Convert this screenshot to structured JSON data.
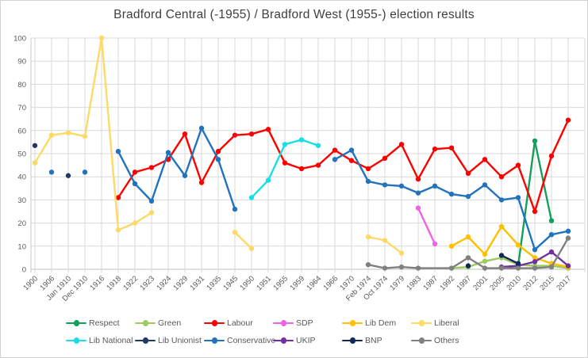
{
  "chart_data": {
    "type": "line",
    "title": "Bradford Central (-1955) / Bradford West (1955-) election results",
    "xlabel": "",
    "ylabel": "",
    "ylim": [
      0,
      100
    ],
    "ytick_step": 10,
    "yticks": [
      0,
      10,
      20,
      30,
      40,
      50,
      60,
      70,
      80,
      90,
      100
    ],
    "grid": true,
    "legend_position": "bottom",
    "marker": "circle",
    "categories": [
      "1900",
      "1906",
      "Jan 1910",
      "Dec 1910",
      "1916",
      "1918",
      "1922",
      "1923",
      "1924",
      "1929",
      "1931",
      "1935",
      "1945",
      "1950",
      "1951",
      "1955",
      "1959",
      "1964",
      "1966",
      "1970",
      "Feb 1974",
      "Oct 1974",
      "1979",
      "1983",
      "1987",
      "1992",
      "1997",
      "2001",
      "2005",
      "2010",
      "2012",
      "2015",
      "2017"
    ],
    "series": [
      {
        "name": "Respect",
        "color": "#14a05a",
        "connect_gaps": false,
        "values": [
          null,
          null,
          null,
          null,
          null,
          null,
          null,
          null,
          null,
          null,
          null,
          null,
          null,
          null,
          null,
          null,
          null,
          null,
          null,
          null,
          null,
          null,
          null,
          null,
          null,
          null,
          null,
          null,
          null,
          1.5,
          55.5,
          21,
          null
        ]
      },
      {
        "name": "Green",
        "color": "#9dc962",
        "connect_gaps": false,
        "values": [
          null,
          null,
          null,
          null,
          null,
          null,
          null,
          null,
          null,
          null,
          null,
          null,
          null,
          null,
          null,
          null,
          null,
          null,
          null,
          null,
          null,
          null,
          null,
          null,
          null,
          0.5,
          1,
          3.5,
          5,
          2,
          1.5,
          1.5,
          0.5
        ]
      },
      {
        "name": "Labour",
        "color": "#fe0000",
        "connect_gaps": false,
        "values": [
          null,
          null,
          null,
          null,
          null,
          31,
          42,
          44,
          47.5,
          58.5,
          37.5,
          51,
          58,
          58.5,
          60.5,
          46,
          43.5,
          45,
          51.5,
          47,
          43.5,
          48,
          54,
          39,
          52,
          52.5,
          41.5,
          47.5,
          40,
          45,
          25,
          49,
          64.5
        ]
      },
      {
        "name": "SDP",
        "color": "#ee64e4",
        "connect_gaps": false,
        "values": [
          null,
          null,
          null,
          null,
          null,
          null,
          null,
          null,
          null,
          null,
          null,
          null,
          null,
          null,
          null,
          null,
          null,
          null,
          null,
          null,
          null,
          null,
          null,
          26.5,
          11,
          null,
          null,
          null,
          null,
          null,
          null,
          null,
          null
        ]
      },
      {
        "name": "Lib Dem",
        "color": "#ffc000",
        "connect_gaps": false,
        "values": [
          null,
          null,
          null,
          null,
          null,
          null,
          null,
          null,
          null,
          null,
          null,
          null,
          null,
          null,
          null,
          null,
          null,
          null,
          null,
          null,
          null,
          null,
          null,
          null,
          null,
          10,
          14,
          6.5,
          18.5,
          10.5,
          5,
          2.5,
          1
        ]
      },
      {
        "name": "Liberal",
        "color": "#ffd966",
        "connect_gaps": false,
        "values": [
          46,
          58,
          59,
          57.5,
          100,
          17,
          20,
          24.5,
          null,
          null,
          null,
          null,
          16,
          9,
          null,
          null,
          null,
          null,
          null,
          null,
          14,
          12.5,
          7,
          null,
          null,
          null,
          null,
          null,
          null,
          null,
          null,
          null,
          null
        ]
      },
      {
        "name": "Lib National",
        "color": "#16e0e6",
        "connect_gaps": false,
        "values": [
          null,
          null,
          null,
          null,
          null,
          null,
          null,
          null,
          null,
          null,
          null,
          null,
          null,
          31,
          38.5,
          54,
          56,
          53.5,
          null,
          null,
          null,
          null,
          null,
          null,
          null,
          null,
          null,
          null,
          null,
          null,
          null,
          null,
          null
        ]
      },
      {
        "name": "Lib Unionist",
        "color": "#23395f",
        "connect_gaps": false,
        "values": [
          53.5,
          null,
          40.5,
          null,
          null,
          null,
          null,
          null,
          null,
          null,
          null,
          null,
          null,
          null,
          null,
          null,
          null,
          null,
          null,
          null,
          null,
          null,
          null,
          null,
          null,
          null,
          null,
          null,
          null,
          null,
          null,
          null,
          null
        ]
      },
      {
        "name": "Conservative",
        "color": "#2173bd",
        "connect_gaps": false,
        "values": [
          null,
          42,
          null,
          42,
          null,
          51,
          37,
          29.5,
          50.5,
          40.5,
          61,
          47.5,
          26,
          null,
          null,
          null,
          null,
          null,
          47.5,
          51.5,
          38,
          36.5,
          36,
          33,
          36,
          32.5,
          31.5,
          36.5,
          30,
          31,
          8.5,
          15,
          16.5
        ]
      },
      {
        "name": "UKIP",
        "color": "#7030a0",
        "connect_gaps": false,
        "values": [
          null,
          null,
          null,
          null,
          null,
          null,
          null,
          null,
          null,
          null,
          null,
          null,
          null,
          null,
          null,
          null,
          null,
          null,
          null,
          null,
          null,
          null,
          null,
          null,
          null,
          null,
          null,
          null,
          1,
          1.5,
          3.3,
          7.5,
          1.5
        ]
      },
      {
        "name": "BNP",
        "color": "#12275a",
        "connect_gaps": false,
        "values": [
          null,
          null,
          null,
          null,
          null,
          null,
          null,
          null,
          null,
          null,
          null,
          null,
          null,
          null,
          null,
          null,
          null,
          null,
          null,
          null,
          null,
          null,
          null,
          null,
          null,
          null,
          1.5,
          null,
          6,
          2.5,
          null,
          null,
          null
        ]
      },
      {
        "name": "Others",
        "color": "#808080",
        "connect_gaps": true,
        "values": [
          null,
          null,
          null,
          null,
          null,
          null,
          null,
          null,
          null,
          null,
          null,
          null,
          null,
          null,
          null,
          null,
          null,
          null,
          null,
          null,
          2,
          0.5,
          1,
          0.5,
          null,
          0.5,
          5,
          0.5,
          0.5,
          0.5,
          0.5,
          1,
          13.5
        ]
      }
    ]
  }
}
